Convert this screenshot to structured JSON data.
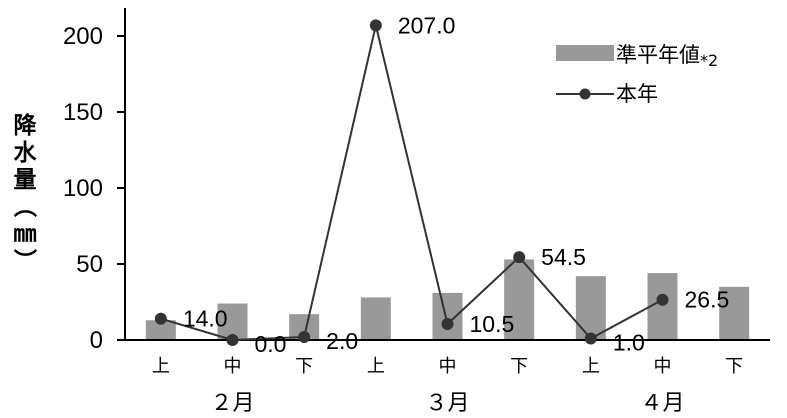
{
  "chart_data": {
    "type": "bar+line",
    "ylabel": "降水量（㎜）",
    "ylim": [
      0,
      210
    ],
    "yticks": [
      "0",
      "50",
      "100",
      "150",
      "200"
    ],
    "categories": [
      "上",
      "中",
      "下",
      "上",
      "中",
      "下",
      "上",
      "中",
      "下"
    ],
    "groups": [
      {
        "label": "２月",
        "span": [
          0,
          2
        ]
      },
      {
        "label": "３月",
        "span": [
          3,
          5
        ]
      },
      {
        "label": "４月",
        "span": [
          6,
          8
        ]
      }
    ],
    "series": [
      {
        "name": "準平年値",
        "name_suffix": "*2",
        "type": "bar",
        "color": "#999999",
        "values": [
          13,
          24,
          17,
          28,
          31,
          53,
          42,
          44,
          35
        ]
      },
      {
        "name": "本年",
        "type": "line",
        "color": "#333333",
        "values": [
          14.0,
          0.0,
          2.0,
          207.0,
          10.5,
          54.5,
          1.0,
          26.5,
          null
        ],
        "labels": [
          "14.0",
          "0.0",
          "2.0",
          "207.0",
          "10.5",
          "54.5",
          "1.0",
          "26.5",
          null
        ]
      }
    ],
    "legend": "top-right",
    "grid": false
  }
}
